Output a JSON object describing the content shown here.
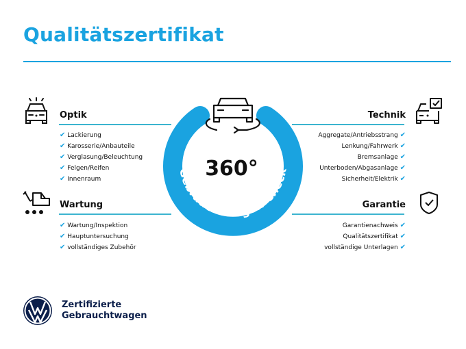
{
  "title": "Qualitätszertifikat",
  "center": {
    "big": "360°",
    "arc_text": "Gebrauchtwagen-Check"
  },
  "sections": {
    "optik": {
      "heading": "Optik",
      "items": [
        "Lackierung",
        "Karosserie/Anbauteile",
        "Verglasung/Beleuchtung",
        "Felgen/Reifen",
        "Innenraum"
      ]
    },
    "wartung": {
      "heading": "Wartung",
      "items": [
        "Wartung/Inspektion",
        "Hauptuntersuchung",
        "vollständiges Zubehör"
      ]
    },
    "technik": {
      "heading": "Technik",
      "items": [
        "Aggregate/Antriebsstrang",
        "Lenkung/Fahrwerk",
        "Bremsanlage",
        "Unterboden/Abgasanlage",
        "Sicherheit/Elektrik"
      ]
    },
    "garantie": {
      "heading": "Garantie",
      "items": [
        "Garantienachweis",
        "Qualitätszertifikat",
        "vollständige Unterlagen"
      ]
    }
  },
  "check_mark": "✔",
  "footer": {
    "line1": "Zertifizierte",
    "line2": "Gebrauchtwagen",
    "logo": "VW"
  },
  "colors": {
    "accent": "#1aa3e0",
    "rule": "#3bb4cf",
    "vw_blue": "#0b1e4a"
  }
}
